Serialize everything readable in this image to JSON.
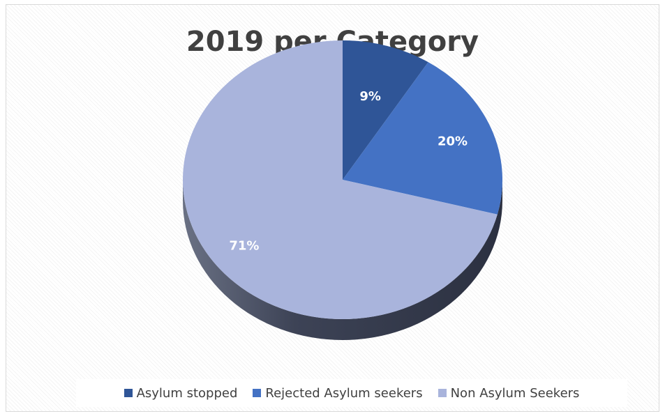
{
  "chart_data": {
    "type": "pie",
    "title": "2019 per Category",
    "slices": [
      {
        "label": "Asylum stopped",
        "value": 9,
        "display": "9%",
        "color": "#2f5597"
      },
      {
        "label": "Rejected Asylum seekers",
        "value": 20,
        "display": "20%",
        "color": "#4472c4"
      },
      {
        "label": "Non Asylum Seekers",
        "value": 71,
        "display": "71%",
        "color": "#a9b4dc"
      }
    ],
    "legend": {
      "position": "bottom",
      "items": [
        "Asylum stopped",
        "Rejected Asylum seekers",
        "Non Asylum Seekers"
      ]
    },
    "style": "3d",
    "side_color": "#3b4155"
  }
}
